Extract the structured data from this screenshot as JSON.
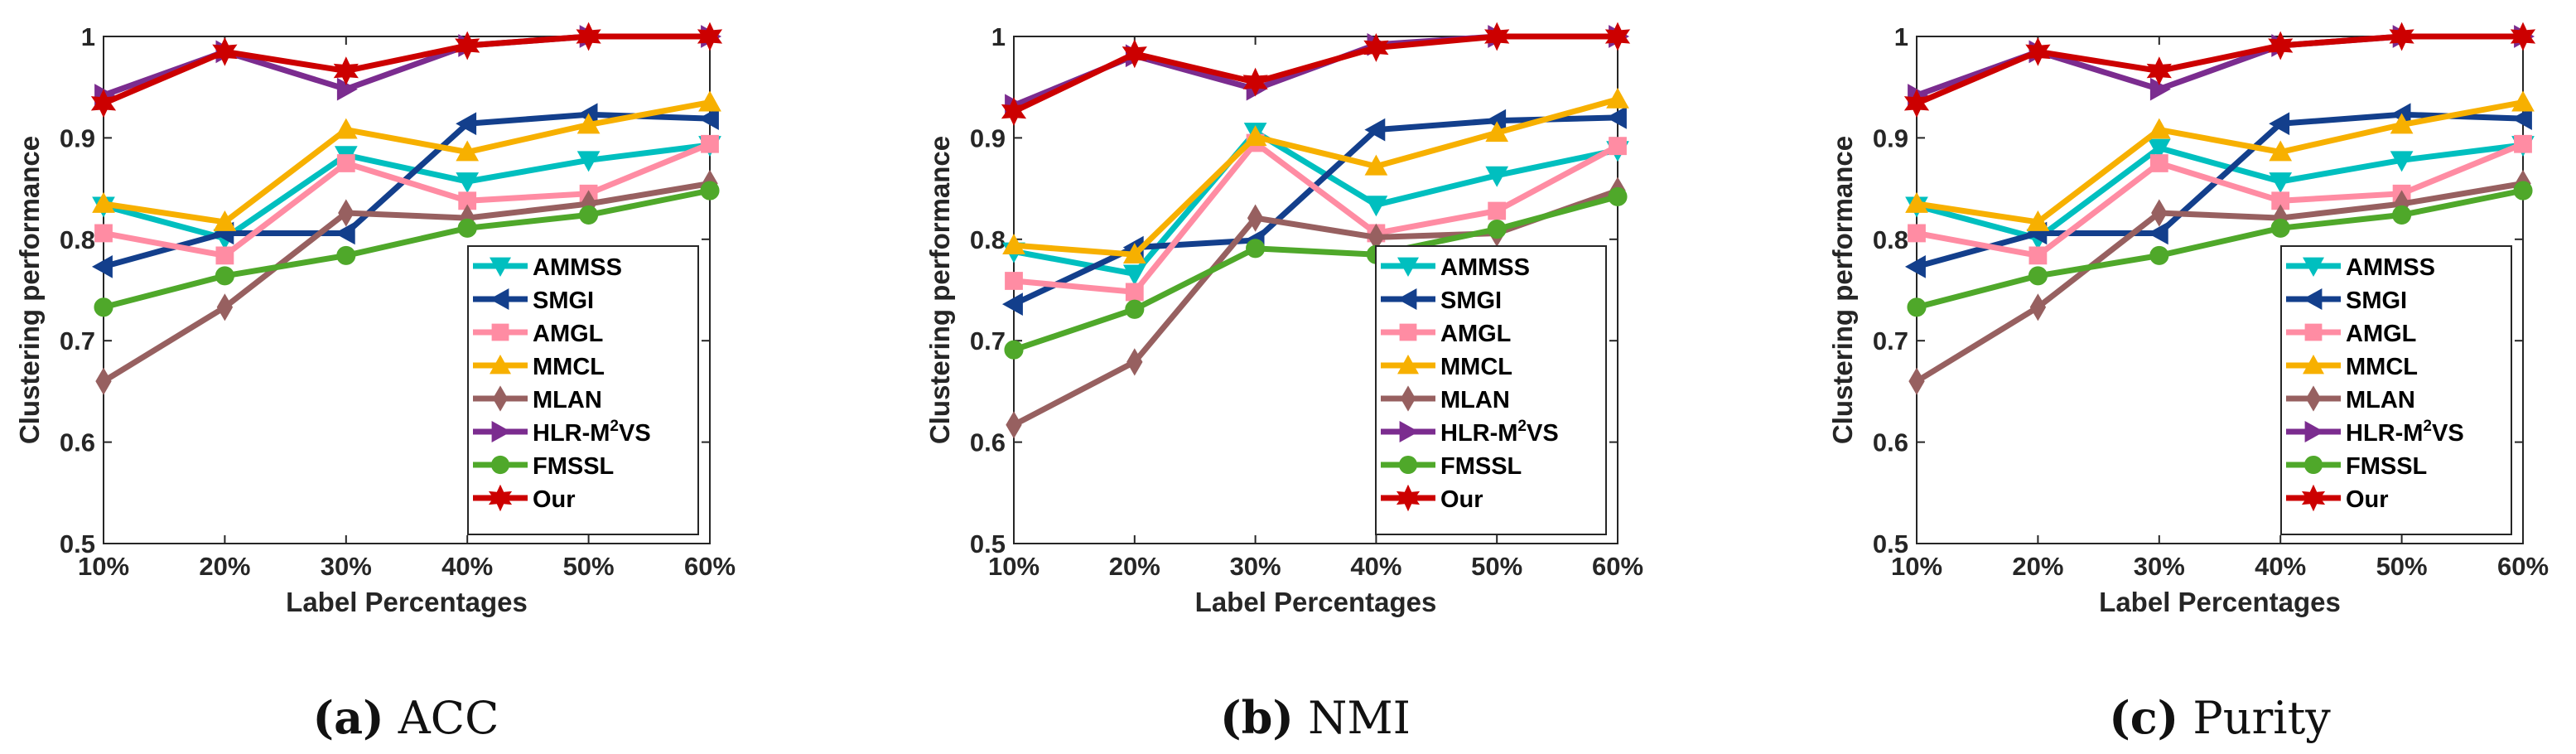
{
  "chart_data": [
    {
      "type": "line",
      "caption_letter": "(a)",
      "caption_label": "ACC",
      "xlabel": "Label Percentages",
      "ylabel": "Clustering performance",
      "categories": [
        "10%",
        "20%",
        "30%",
        "40%",
        "50%",
        "60%"
      ],
      "ylim": [
        0.5,
        1
      ],
      "yticks": [
        "0.5",
        "0.6",
        "0.7",
        "0.8",
        "0.9",
        "1"
      ],
      "legend_position": "bottom-right",
      "series": [
        {
          "name": "AMMSS",
          "color": "#00bfbf",
          "marker": "triangle-down",
          "values": [
            0.833,
            0.801,
            0.883,
            0.857,
            0.878,
            0.893
          ]
        },
        {
          "name": "SMGI",
          "color": "#133f8c",
          "marker": "triangle-left",
          "values": [
            0.773,
            0.806,
            0.806,
            0.914,
            0.923,
            0.919
          ]
        },
        {
          "name": "AMGL",
          "color": "#ff8ca3",
          "marker": "square",
          "values": [
            0.806,
            0.784,
            0.875,
            0.838,
            0.845,
            0.894
          ]
        },
        {
          "name": "MMCL",
          "color": "#f7b000",
          "marker": "triangle-up",
          "values": [
            0.835,
            0.817,
            0.908,
            0.886,
            0.913,
            0.935
          ]
        },
        {
          "name": "MLAN",
          "color": "#976060",
          "marker": "diamond",
          "values": [
            0.66,
            0.733,
            0.826,
            0.821,
            0.835,
            0.855
          ]
        },
        {
          "name": "HLR-M",
          "name_sup": "2",
          "name_suffix": "VS",
          "color": "#7b2c8f",
          "marker": "triangle-right",
          "values": [
            0.942,
            0.985,
            0.948,
            0.991,
            1.0,
            1.0
          ]
        },
        {
          "name": "FMSSL",
          "color": "#4fa82a",
          "marker": "circle",
          "values": [
            0.733,
            0.764,
            0.784,
            0.811,
            0.824,
            0.848
          ]
        },
        {
          "name": "Our",
          "color": "#cc0000",
          "marker": "hexagram",
          "values": [
            0.934,
            0.985,
            0.966,
            0.991,
            1.0,
            1.0
          ]
        }
      ]
    },
    {
      "type": "line",
      "caption_letter": "(b)",
      "caption_label": "NMI",
      "xlabel": "Label Percentages",
      "ylabel": "Clustering performance",
      "categories": [
        "10%",
        "20%",
        "30%",
        "40%",
        "50%",
        "60%"
      ],
      "ylim": [
        0.5,
        1
      ],
      "yticks": [
        "0.5",
        "0.6",
        "0.7",
        "0.8",
        "0.9",
        "1"
      ],
      "legend_position": "bottom-right",
      "series": [
        {
          "name": "AMMSS",
          "color": "#00bfbf",
          "marker": "triangle-down",
          "values": [
            0.788,
            0.766,
            0.906,
            0.834,
            0.863,
            0.888
          ]
        },
        {
          "name": "SMGI",
          "color": "#133f8c",
          "marker": "triangle-left",
          "values": [
            0.736,
            0.792,
            0.799,
            0.908,
            0.917,
            0.92
          ]
        },
        {
          "name": "AMGL",
          "color": "#ff8ca3",
          "marker": "square",
          "values": [
            0.759,
            0.748,
            0.895,
            0.806,
            0.828,
            0.892
          ]
        },
        {
          "name": "MMCL",
          "color": "#f7b000",
          "marker": "triangle-up",
          "values": [
            0.794,
            0.785,
            0.901,
            0.872,
            0.905,
            0.938
          ]
        },
        {
          "name": "MLAN",
          "color": "#976060",
          "marker": "diamond",
          "values": [
            0.617,
            0.679,
            0.821,
            0.802,
            0.806,
            0.848
          ]
        },
        {
          "name": "HLR-M",
          "name_sup": "2",
          "name_suffix": "VS",
          "color": "#7b2c8f",
          "marker": "triangle-right",
          "values": [
            0.932,
            0.981,
            0.948,
            0.992,
            1.0,
            1.0
          ]
        },
        {
          "name": "FMSSL",
          "color": "#4fa82a",
          "marker": "circle",
          "values": [
            0.691,
            0.731,
            0.791,
            0.785,
            0.81,
            0.842
          ]
        },
        {
          "name": "Our",
          "color": "#cc0000",
          "marker": "hexagram",
          "values": [
            0.926,
            0.983,
            0.955,
            0.989,
            1.0,
            1.0
          ]
        }
      ]
    },
    {
      "type": "line",
      "caption_letter": "(c)",
      "caption_label": "Purity",
      "xlabel": "Label Percentages",
      "ylabel": "Clustering performance",
      "categories": [
        "10%",
        "20%",
        "30%",
        "40%",
        "50%",
        "60%"
      ],
      "ylim": [
        0.5,
        1
      ],
      "yticks": [
        "0.5",
        "0.6",
        "0.7",
        "0.8",
        "0.9",
        "1"
      ],
      "legend_position": "bottom-right",
      "series": [
        {
          "name": "AMMSS",
          "color": "#00bfbf",
          "marker": "triangle-down",
          "values": [
            0.833,
            0.801,
            0.89,
            0.857,
            0.878,
            0.893
          ]
        },
        {
          "name": "SMGI",
          "color": "#133f8c",
          "marker": "triangle-left",
          "values": [
            0.773,
            0.806,
            0.806,
            0.914,
            0.923,
            0.919
          ]
        },
        {
          "name": "AMGL",
          "color": "#ff8ca3",
          "marker": "square",
          "values": [
            0.806,
            0.784,
            0.875,
            0.838,
            0.845,
            0.894
          ]
        },
        {
          "name": "MMCL",
          "color": "#f7b000",
          "marker": "triangle-up",
          "values": [
            0.835,
            0.817,
            0.908,
            0.886,
            0.913,
            0.935
          ]
        },
        {
          "name": "MLAN",
          "color": "#976060",
          "marker": "diamond",
          "values": [
            0.66,
            0.733,
            0.826,
            0.821,
            0.835,
            0.855
          ]
        },
        {
          "name": "HLR-M",
          "name_sup": "2",
          "name_suffix": "VS",
          "color": "#7b2c8f",
          "marker": "triangle-right",
          "values": [
            0.942,
            0.985,
            0.948,
            0.991,
            1.0,
            1.0
          ]
        },
        {
          "name": "FMSSL",
          "color": "#4fa82a",
          "marker": "circle",
          "values": [
            0.733,
            0.764,
            0.784,
            0.811,
            0.824,
            0.848
          ]
        },
        {
          "name": "Our",
          "color": "#cc0000",
          "marker": "hexagram",
          "values": [
            0.934,
            0.985,
            0.966,
            0.991,
            1.0,
            1.0
          ]
        }
      ]
    }
  ]
}
